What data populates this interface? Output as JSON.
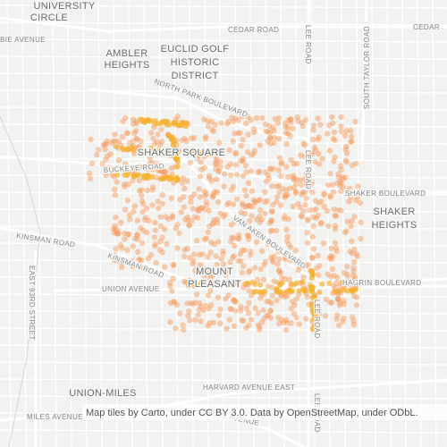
{
  "places": [
    {
      "lines": [
        "UNIVERSITY",
        "CIRCLE"
      ]
    },
    {
      "lines": [
        "AMBLER",
        "HEIGHTS"
      ]
    },
    {
      "lines": [
        "EUCLID GOLF",
        "HISTORIC",
        "DISTRICT"
      ]
    },
    {
      "lines": [
        "SHAKER SQUARE"
      ]
    },
    {
      "lines": [
        "SHAKER",
        "HEIGHTS"
      ]
    },
    {
      "lines": [
        "MOUNT",
        "PLEASANT"
      ]
    },
    {
      "lines": [
        "UNION-MILES"
      ]
    }
  ],
  "roads": [
    "CEDAR ROAD",
    "CEDAR",
    "BIE AVENUE",
    "NORTH PARK BOULEVARD",
    "LEE ROAD",
    "SOUTH TAYLOR ROAD",
    "BUCKEYE ROAD",
    "SHAKER BOULEVARD",
    "VAN AKEN BOULEVARD",
    "KINSMAN ROAD",
    "UNION AVENUE",
    "HAGRIN BOULEVARD",
    "EAST 93RD STREET",
    "HARVARD AVENUE EAST",
    "MILES AVENUE"
  ],
  "attribution": "Map tiles by Carto, under CC BY 3.0. Data by OpenStreetMap, under ODbL."
}
